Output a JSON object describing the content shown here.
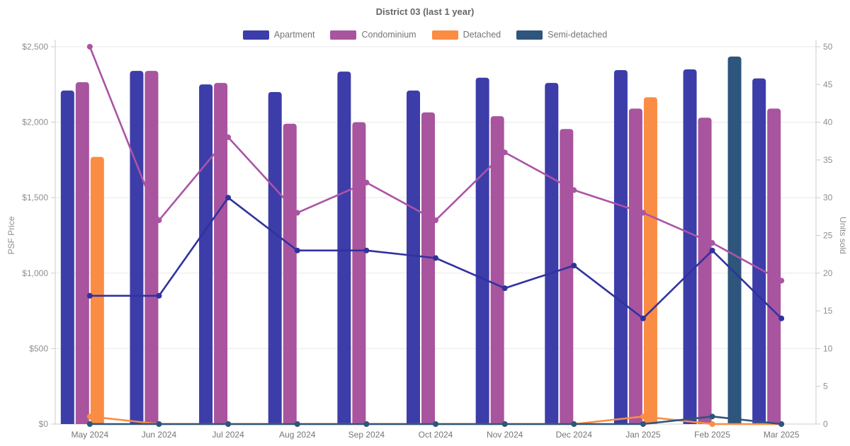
{
  "title": "District 03 (last 1 year)",
  "chart_data": {
    "type": "bar",
    "overlay_type": "line",
    "title": "District 03 (last 1 year)",
    "categories": [
      "May 2024",
      "Jun 2024",
      "Jul 2024",
      "Aug 2024",
      "Sep 2024",
      "Oct 2024",
      "Nov 2024",
      "Dec 2024",
      "Jan 2025",
      "Feb 2025",
      "Mar 2025"
    ],
    "legend": [
      "Apartment",
      "Condominium",
      "Detached",
      "Semi-detached"
    ],
    "legend_position": "top",
    "grid": true,
    "y_left": {
      "label": "PSF Price",
      "min": 0,
      "max": 2500,
      "step": 500,
      "tick_labels": [
        "$0",
        "$500",
        "$1,000",
        "$1,500",
        "$2,000",
        "$2,500"
      ]
    },
    "y_right": {
      "label": "Units sold",
      "min": 0,
      "max": 50,
      "step": 5,
      "tick_labels": [
        "0",
        "5",
        "10",
        "15",
        "20",
        "25",
        "30",
        "35",
        "40",
        "45",
        "50"
      ]
    },
    "bar_series": [
      {
        "name": "Apartment",
        "axis": "left",
        "color": "#3d3da9",
        "values": [
          2210,
          2340,
          2250,
          2200,
          2335,
          2210,
          2295,
          2260,
          2345,
          2350,
          2290
        ]
      },
      {
        "name": "Condominium",
        "axis": "left",
        "color": "#a8549e",
        "values": [
          2265,
          2340,
          2260,
          1990,
          2000,
          2065,
          2040,
          1955,
          2090,
          2030,
          2090
        ]
      },
      {
        "name": "Detached",
        "axis": "left",
        "color": "#fb8c44",
        "values": [
          1770,
          null,
          null,
          null,
          null,
          null,
          null,
          null,
          2165,
          null,
          null
        ]
      },
      {
        "name": "Semi-detached",
        "axis": "left",
        "color": "#2e567c",
        "values": [
          null,
          null,
          null,
          null,
          null,
          null,
          null,
          null,
          null,
          2435,
          null
        ]
      }
    ],
    "line_series": [
      {
        "name": "Apartment",
        "axis": "right",
        "color": "#32329f",
        "values": [
          17,
          17,
          30,
          23,
          23,
          22,
          18,
          21,
          14,
          23,
          14
        ]
      },
      {
        "name": "Condominium",
        "axis": "right",
        "color": "#ab54a5",
        "values": [
          50,
          27,
          38,
          28,
          32,
          27,
          36,
          31,
          28,
          24,
          19
        ]
      },
      {
        "name": "Detached",
        "axis": "right",
        "color": "#fb8c44",
        "values": [
          1,
          0,
          0,
          0,
          0,
          0,
          0,
          0,
          1,
          0,
          0
        ]
      },
      {
        "name": "Semi-detached",
        "axis": "right",
        "color": "#2e567c",
        "values": [
          0,
          0,
          0,
          0,
          0,
          0,
          0,
          0,
          0,
          1,
          0
        ]
      }
    ],
    "colors": {
      "grid_line": "#e9e9e9",
      "axis_line": "#cccccc",
      "tick_label": "#8f8f8f",
      "category_label": "#767676",
      "axis_title": "#8f8f8f",
      "title_text": "#666666",
      "legend_text": "#757575",
      "background": "#ffffff"
    }
  }
}
